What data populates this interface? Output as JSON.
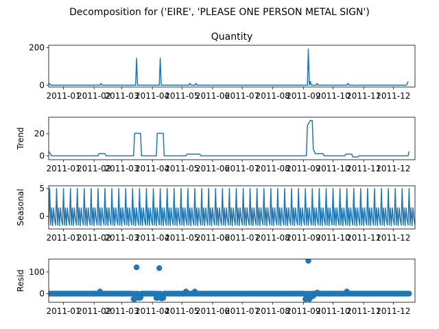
{
  "chart_data": {
    "type": "line",
    "suptitle": "Decomposition for ('EIRE', 'PLEASE ONE PERSON METAL SIGN')",
    "line_color": "#1f77b4",
    "x_tick_labels": [
      "2011-01",
      "2011-02",
      "2011-03",
      "2011-04",
      "2011-05",
      "2011-06",
      "2011-07",
      "2011-08",
      "2011-09",
      "2011-10",
      "2011-11",
      "2011-12"
    ],
    "x_tick_positions_day": [
      15,
      46,
      74,
      105,
      135,
      166,
      196,
      227,
      258,
      288,
      319,
      349
    ],
    "x_range_day": [
      0,
      371
    ],
    "panels": [
      {
        "key": "quantity",
        "title": "Quantity",
        "ylabel": "",
        "kind": "line",
        "ylim": [
          -10,
          212
        ],
        "yticks": [
          0,
          200
        ],
        "points": [
          [
            0,
            12
          ],
          [
            2,
            0
          ],
          [
            52,
            0
          ],
          [
            53,
            10
          ],
          [
            54,
            0
          ],
          [
            88,
            0
          ],
          [
            89,
            143
          ],
          [
            90,
            0
          ],
          [
            112,
            0
          ],
          [
            113,
            143
          ],
          [
            114,
            0
          ],
          [
            142,
            0
          ],
          [
            143,
            10
          ],
          [
            144,
            0
          ],
          [
            148,
            0
          ],
          [
            149,
            10
          ],
          [
            150,
            0
          ],
          [
            262,
            0
          ],
          [
            263,
            192
          ],
          [
            264,
            0
          ],
          [
            265,
            20
          ],
          [
            266,
            0
          ],
          [
            271,
            0
          ],
          [
            272,
            10
          ],
          [
            273,
            0
          ],
          [
            302,
            0
          ],
          [
            303,
            10
          ],
          [
            304,
            0
          ],
          [
            310,
            0
          ],
          [
            311,
            -2
          ],
          [
            312,
            0
          ],
          [
            362,
            0
          ],
          [
            363,
            5
          ],
          [
            364,
            20
          ]
        ]
      },
      {
        "key": "trend",
        "title": "",
        "ylabel": "Trend",
        "kind": "line",
        "ylim": [
          -3.5,
          35
        ],
        "yticks": [
          0,
          20
        ],
        "points": [
          [
            0,
            4
          ],
          [
            3,
            0
          ],
          [
            50,
            0
          ],
          [
            51,
            2
          ],
          [
            57,
            2
          ],
          [
            58,
            0
          ],
          [
            86,
            0
          ],
          [
            87,
            20.4
          ],
          [
            93,
            20.4
          ],
          [
            94,
            0
          ],
          [
            109,
            0
          ],
          [
            110,
            20.4
          ],
          [
            116,
            20.4
          ],
          [
            117,
            0
          ],
          [
            139,
            0
          ],
          [
            140,
            1.5
          ],
          [
            153,
            1.5
          ],
          [
            154,
            0
          ],
          [
            261,
            0
          ],
          [
            262,
            27
          ],
          [
            263,
            29
          ],
          [
            265,
            32
          ],
          [
            267,
            32
          ],
          [
            268,
            6
          ],
          [
            269,
            4
          ],
          [
            270,
            2
          ],
          [
            278,
            2
          ],
          [
            279,
            0
          ],
          [
            300,
            0
          ],
          [
            301,
            1.5
          ],
          [
            307,
            1.5
          ],
          [
            308,
            -1
          ],
          [
            313,
            -1
          ],
          [
            314,
            0
          ],
          [
            364,
            0
          ],
          [
            365,
            4
          ]
        ]
      },
      {
        "key": "seasonal",
        "title": "",
        "ylabel": "Seasonal",
        "kind": "seasonal",
        "ylim": [
          -2.3,
          5.5
        ],
        "yticks": [
          0,
          5
        ],
        "period": 7,
        "pattern": [
          -1.6,
          5.0,
          -1.6,
          1.5,
          -1.7,
          1.5,
          -0.6
        ]
      },
      {
        "key": "resid",
        "title": "",
        "ylabel": "Resid",
        "kind": "scatter",
        "ylim": [
          -40,
          160
        ],
        "yticks": [
          0,
          100
        ],
        "base": 0,
        "outliers": [
          [
            52,
            10
          ],
          [
            86,
            -25
          ],
          [
            87,
            -25
          ],
          [
            89,
            122
          ],
          [
            91,
            -20
          ],
          [
            92,
            -20
          ],
          [
            93,
            -18
          ],
          [
            109,
            -20
          ],
          [
            110,
            -20
          ],
          [
            112,
            118
          ],
          [
            114,
            -22
          ],
          [
            115,
            -22
          ],
          [
            116,
            -20
          ],
          [
            139,
            10
          ],
          [
            148,
            10
          ],
          [
            260,
            -25
          ],
          [
            261,
            -20
          ],
          [
            263,
            152
          ],
          [
            264,
            -25
          ],
          [
            266,
            -15
          ],
          [
            268,
            -10
          ],
          [
            272,
            5
          ],
          [
            302,
            10
          ]
        ]
      }
    ]
  }
}
